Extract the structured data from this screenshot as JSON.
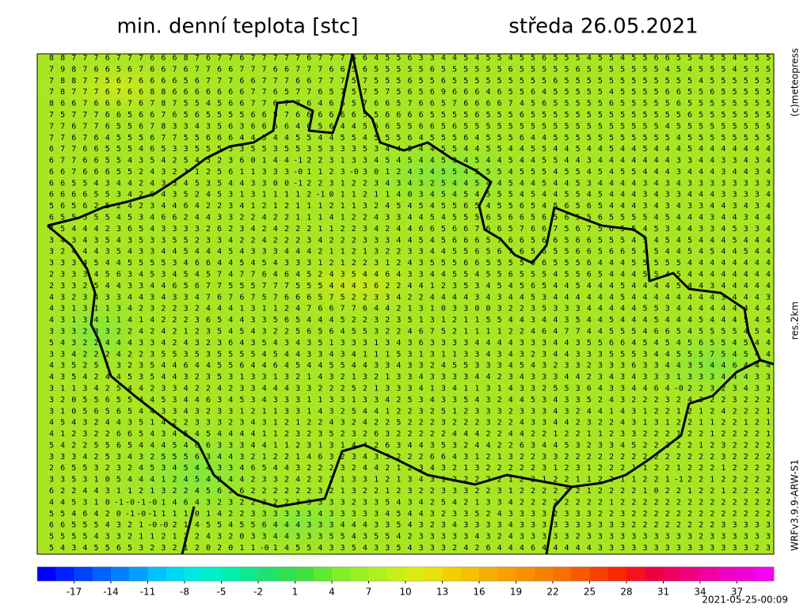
{
  "header": {
    "title": "min. denní teplota [stc]",
    "date": "středa 26.05.2021"
  },
  "side": {
    "copyright": "(c)meteopress",
    "resolution": "res.2km",
    "model": "WRFv3.9.9-ARW-S1"
  },
  "timestamp": "2021-05-25-00:09",
  "colorbar": {
    "range": [
      -20,
      40
    ],
    "colors": [
      "#0000ff",
      "#0020ff",
      "#0040ff",
      "#0060ff",
      "#0080ff",
      "#00a0ff",
      "#00c0ff",
      "#00d8f0",
      "#00e8e0",
      "#00f0c8",
      "#00f0a8",
      "#10e890",
      "#20e070",
      "#30e050",
      "#40e040",
      "#60e830",
      "#80ee28",
      "#98f020",
      "#b0f020",
      "#c8f018",
      "#dcec10",
      "#e8e010",
      "#f0d000",
      "#f4c000",
      "#f4b000",
      "#f8a000",
      "#f89000",
      "#f88000",
      "#f87000",
      "#f85800",
      "#f84000",
      "#f82800",
      "#f81020",
      "#f00040",
      "#f00060",
      "#f00080",
      "#f000a0",
      "#f000c0",
      "#f000d8",
      "#f800f0"
    ],
    "ticks": [
      -17,
      -14,
      -11,
      -8,
      -5,
      -2,
      1,
      4,
      7,
      10,
      13,
      16,
      19,
      22,
      25,
      28,
      31,
      34,
      37
    ]
  },
  "grid": {
    "rows": [
      "8 8 7 7 7 6 7 7 7 6 6 6 8 7 6 7 7 6 7 7 7 7 7 6 7 7 7 6 6 4 5 5 6 3 3 4 4 5 4 5 5 4 5 5 6 5 5 5 4 5 5 4 5 5 6 6 5 5 4 5 5 4 5 5 5",
      "7 9 8 7 6 6 5 6 7 6 6 7 6 7 7 6 6 7 7 7 6 6 7 7 7 6 6 5 6 5 5 5 5 5 6 5 5 5 5 5 5 6 5 5 5 5 5 6 5 5 5 5 5 5 5 4 5 4 5 5 5 4 5 5 5",
      "7 8 8 7 7 5 6 7 6 6 6 6 5 6 7 7 7 6 6 7 7 7 6 6 7 7 7 5 7 5 5 5 6 5 5 6 5 5 5 5 5 5 5 5 5 6 5 5 5 5 5 5 5 5 5 5 5 5 4 5 5 5 5 5 5",
      "7 8 7 7 7 6 7 6 6 8 8 6 6 6 6 6 6 6 7 7 6 5 7 7 6 5 7 5 7 5 7 5 6 5 6 9 6 6 6 4 6 5 5 6 4 5 5 5 5 5 4 5 5 5 5 6 6 5 5 6 5 5 5 5 5",
      "8 6 6 7 6 6 6 7 6 7 8 7 5 5 4 5 6 6 7 7 6 7 7 6 4 6 6 5 7 6 6 5 7 6 6 5 7 6 6 6 6 7 4 5 6 5 5 5 5 5 6 5 5 5 5 5 6 5 5 5 5 5 5 5 5",
      "7 5 7 7 7 6 6 5 6 6 7 6 5 6 5 5 5 5 6 6 5 7 6 6 6 6 6 6 5 5 6 6 6 6 5 5 5 5 6 5 5 5 6 5 5 5 5 5 5 5 5 5 5 5 5 5 5 6 5 5 5 5 5 5 5",
      "7 7 6 7 7 6 5 5 6 7 8 3 3 4 3 5 6 3 6 6 6 6 4 6 5 6 4 4 5 5 6 5 5 6 6 5 6 5 5 5 5 5 5 5 5 5 5 5 5 5 5 5 5 5 5 4 5 5 5 5 5 5 5 5 5",
      "7 7 6 7 6 4 5 5 5 6 7 7 5 5 6 6 6 4 4 5 4 4 5 5 4 4 5 5 4 5 5 5 6 4 5 5 5 6 4 5 5 5 6 4 4 5 5 5 5 5 5 5 5 5 5 5 4 5 5 5 5 5 5 5 5",
      "6 7 7 6 6 5 5 5 4 6 5 3 3 5 5 5 5 3 5 5 3 5 5 3 5 3 3 3 5 3 4 4 5 4 4 5 5 4 4 5 5 4 4 5 5 4 4 5 4 4 5 4 4 5 4 4 4 5 4 4 4 4 4 4 4",
      "6 7 7 6 6 5 5 4 3 5 4 2 5 4 3 2 3 6 0 1 4 4 -1 2 2 3 1 3 3 4 5 4 5 4 4 5 3 4 5 4 4 5 4 4 5 5 4 4 3 4 4 4 4 4 4 4 3 3 4 4 3 3 4 3 4",
      "6 6 7 6 6 6 5 5 2 4 3 2 3 1 2 5 6 1 1 3 3 3 -0 1 1 2 3 -0 3 0 1 2 4 3 4 5 5 4 5 5 5 4 5 5 5 4 5 5 4 5 4 5 5 4 4 4 3 4 4 4 3 4 4 3 4",
      "6 6 5 5 4 3 4 4 2 4 3 3 4 5 3 5 4 4 3 3 0 0 -1 2 2 3 1 2 2 3 4 3 4 3 2 5 4 4 5 4 4 5 4 4 5 4 4 5 3 4 4 4 4 3 4 3 4 3 3 3 3 3 3 3 3",
      "6 6 6 6 5 5 3 4 2 0 4 3 5 2 4 5 3 1 3 1 1 1 1 2 -1 0 1 1 2 1 1 4 0 3 4 5 4 5 4 5 5 5 4 5 4 4 5 5 4 5 4 4 4 3 4 3 3 4 4 4 3 3 3 3 4",
      "5 6 5 6 2 5 2 4 2 3 4 4 6 4 2 2 3 4 1 2 1 2 1 1 1 2 1 1 3 2 4 5 4 5 4 5 5 6 5 4 5 5 6 5 4 5 6 5 6 5 4 4 4 3 4 3 4 3 3 4 4 3 4 3 4",
      "6 5 5 5 5 5 4 5 3 4 6 6 2 4 4 3 3 2 2 4 2 2 1 1 1 4 1 2 2 4 3 3 4 4 5 4 5 5 5 6 5 6 6 5 6 5 6 5 5 6 5 5 5 5 4 5 4 4 4 3 4 4 3 4 4",
      "4 5 4 4 4 2 3 6 5 4 3 3 3 3 2 6 2 3 4 2 4 2 2 2 1 1 2 2 3 4 2 4 4 6 6 5 6 6 7 6 6 5 7 6 6 7 5 6 7 5 6 5 5 4 5 3 4 4 3 3 4 5 3 3 4",
      "3 4 3 4 3 5 4 3 5 3 3 5 5 2 3 3 4 2 2 4 2 2 2 3 4 2 2 2 3 3 3 4 4 5 4 5 6 6 6 5 7 6 6 5 6 6 5 6 6 5 5 5 4 5 4 5 4 5 4 4 4 5 4 4 4",
      "3 2 4 4 4 3 5 4 3 3 4 4 5 4 4 4 5 4 3 3 3 4 4 4 2 1 1 2 1 3 2 2 3 3 4 4 5 5 6 5 6 7 6 5 6 5 5 6 6 5 6 6 5 4 5 4 4 5 4 5 4 4 5 4 4",
      "3 3 3 4 5 4 4 5 5 5 5 3 4 6 6 4 4 5 4 5 4 3 3 3 1 2 1 2 2 3 1 2 4 3 5 5 5 6 6 5 5 5 5 6 6 5 5 5 6 4 4 4 5 5 5 5 5 4 4 4 4 4 4 4 4",
      "2 3 3 3 4 5 6 3 4 5 3 4 5 4 5 7 4 7 7 6 4 6 4 5 2 4 3 5 4 4 6 4 3 3 4 4 5 5 4 5 5 6 5 5 5 4 5 5 6 5 4 4 4 5 5 4 5 4 4 4 4 4 4 4 4",
      "2 3 3 2 5 4 4 3 3 4 4 6 5 6 7 7 5 5 5 7 7 7 5 5 5 4 4 4 3 6 2 2 4 4 1 2 3 5 3 4 5 4 5 6 5 4 4 5 4 4 4 5 4 4 4 4 5 4 4 3 4 4 4 4 4",
      "4 3 2 3 4 3 3 4 4 3 4 3 3 4 7 6 7 6 7 5 7 6 6 6 5 7 5 2 2 3 3 4 2 2 4 4 4 4 3 4 3 4 4 5 3 4 4 4 4 4 4 5 4 4 4 4 4 4 4 4 3 4 4 4 3",
      "4 3 1 3 1 1 3 4 2 3 2 2 3 2 4 4 4 1 3 1 1 2 4 7 6 6 7 7 6 4 4 2 1 3 1 0 3 3 0 0 3 2 2 3 5 3 3 3 4 4 4 4 4 5 5 3 4 4 4 4 4 4 4 4 4",
      "4 3 1 3 4 1 1 4 1 4 2 2 2 3 6 5 4 4 3 3 5 6 5 4 4 4 5 2 2 3 2 3 5 1 3 1 2 1 1 5 5 4 4 3 4 4 3 5 4 4 5 4 4 4 5 4 4 4 5 4 4 4 5 4 5",
      "3 3 3 2 3 3 2 2 4 2 4 2 1 2 3 5 4 5 4 3 2 2 5 6 5 6 4 5 5 3 2 2 4 6 7 5 2 1 1 1 1 2 2 4 6 4 7 7 4 4 5 5 5 4 6 6 5 4 5 5 5 5 4 5 4",
      "5 4 3 2 2 4 4 4 3 3 4 2 4 3 2 3 6 4 3 5 4 3 4 3 5 1 3 3 3 1 3 4 3 6 3 3 3 3 4 4 4 4 3 3 3 4 4 3 5 5 6 6 4 5 4 5 4 5 6 5 5 4 5 4 4",
      "3 3 4 2 2 2 4 2 2 3 5 5 3 5 3 5 5 5 5 4 5 4 4 3 3 4 3 4 1 1 1 5 3 1 3 1 1 3 3 4 3 4 3 2 3 4 4 3 3 3 5 5 5 3 4 4 5 5 5 7 5 4 5 4 4",
      "4 3 5 2 5 1 3 2 3 5 4 4 6 4 4 5 5 6 4 4 6 4 5 4 4 5 5 4 4 3 3 4 3 3 2 4 5 5 3 3 3 4 5 4 3 2 3 3 2 3 3 3 6 3 3 4 4 3 5 4 4 6 4 4 4",
      "4 3 5 4 2 4 4 5 3 5 4 4 3 2 3 5 3 1 3 3 1 3 2 1 4 3 2 1 3 2 1 3 3 4 3 3 3 3 4 4 2 3 4 3 3 3 4 4 2 3 4 3 4 3 3 3 1 3 3 3 4 4 4 3 3",
      "3 1 1 3 4 2 5 4 4 2 3 3 4 2 2 4 2 3 3 4 4 4 3 3 2 2 2 5 2 1 3 3 3 4 1 3 4 1 1 3 1 4 3 3 2 5 5 3 6 4 3 3 4 4 6 4 -0 2 2 3 2 3 4 3 3",
      "3 2 0 5 5 6 5 5 4 4 5 3 4 4 6 3 4 5 3 4 3 3 3 1 1 3 3 1 3 3 4 2 5 3 4 3 3 5 4 3 2 4 4 5 3 4 3 3 5 2 4 3 2 2 2 3 2 4 3 2 2 3 2 2 2",
      "3 1 0 5 6 5 6 5 4 4 3 3 4 3 2 3 3 1 2 1 1 3 3 1 4 3 2 5 4 4 1 2 2 3 2 5 1 2 3 3 3 2 3 3 3 4 3 2 4 4 1 4 3 1 2 2 1 2 1 2 4 2 2 2 1",
      "4 5 4 3 2 4 4 3 5 1 4 2 2 3 3 3 2 3 4 3 1 2 1 2 2 4 3 2 4 2 2 5 2 2 2 3 2 2 2 3 2 2 4 3 3 4 4 2 3 2 2 4 3 1 3 1 2 2 1 1 2 2 1 2 1",
      "4 1 2 3 2 2 6 6 5 4 3 4 5 4 5 4 4 4 4 1 1 2 3 2 3 5 2 3 2 6 3 2 2 2 2 2 4 4 4 2 2 4 4 2 2 1 2 2 1 1 2 3 3 2 2 2 1 2 2 1 2 2 2 2 1",
      "5 4 2 2 5 5 6 5 4 4 4 5 4 6 6 3 3 3 4 4 1 1 2 3 1 3 1 4 4 2 6 3 4 4 3 5 3 2 4 4 2 2 6 3 4 4 5 3 2 3 3 4 5 2 2 3 2 2 1 2 3 2 2 2 2",
      "3 3 3 4 2 5 3 4 3 2 5 5 5 6 3 4 4 3 2 1 2 2 1 4 6 3 2 3 4 3 3 2 2 2 6 6 4 3 1 2 1 3 2 2 3 3 2 2 2 2 2 2 2 2 2 2 2 2 2 2 3 2 2 2 2",
      "2 6 5 5 3 2 3 2 4 5 3 4 5 4 4 3 3 4 6 5 4 4 3 2 2 2 3 2 4 4 2 1 2 3 4 3 2 1 3 2 2 2 2 2 3 1 2 3 1 2 2 2 1 1 2 2 1 2 2 2 1 2 2 2 2",
      "3 3 5 3 1 0 5 4 4 4 1 2 4 5 4 2 4 4 2 3 3 2 4 2 2 2 1 3 3 1 2 1 3 4 3 1 2 2 2 2 2 1 2 2 1 2 2 1 1 2 2 1 1 2 2 1 -1 2 2 1 2 2 2 2 2",
      "6 2 2 4 4 3 1 1 2 1 3 2 2 4 5 6 2 6 2 2 2 2 2 2 3 2 1 3 2 2 1 2 3 2 2 3 3 3 2 2 3 1 2 2 2 2 2 2 1 2 2 2 2 1 0 2 2 1 2 2 1 2 2 2 2",
      "4 4 5 3 1 0 -1 -0 -1 -0 1 4 6 4 3 2 3 2 2 3 2 2 3 3 3 3 3 2 3 3 5 4 3 4 2 5 4 2 1 3 3 4 2 2 2 2 2 2 2 2 1 2 2 2 2 2 2 2 2 2 2 2 2 2 2",
      "5 5 4 6 4 2 0 -1 -0 -1 1 1 1 0 1 4 2 2 3 3 3 3 3 3 4 3 3 3 3 3 4 5 4 4 3 2 3 3 5 2 4 3 3 3 3 2 3 3 3 2 2 3 2 2 2 2 2 2 2 2 2 2 2 2 2",
      "6 6 5 5 5 4 3 2 1 -0 -0 2 1 4 5 5 4 5 5 6 4 4 4 3 3 3 4 4 4 3 3 5 4 3 2 3 4 3 3 3 3 4 3 3 3 3 3 3 3 3 3 3 2 2 2 2 2 2 2 2 3 3 3 3 3",
      "5 5 5 5 4 3 3 2 1 1 2 1 2 2 4 3 2 0 3 3 4 4 3 3 3 5 5 4 3 5 5 4 2 3 3 3 3 3 4 3 2 4 3 3 3 3 3 2 3 3 3 3 3 3 3 3 3 3 2 3 3 3 3 3 3",
      "5 4 3 4 5 5 6 5 3 2 3 2 1 2 0 2 0 1 1 -0 1 4 5 5 4 3 3 5 4 3 3 5 4 3 3 3 2 4 2 6 4 4 4 6 4 4 4 4 4 3 3 3 3 3 3 3 3 3 3 3 3 3 3 2 3"
    ]
  }
}
